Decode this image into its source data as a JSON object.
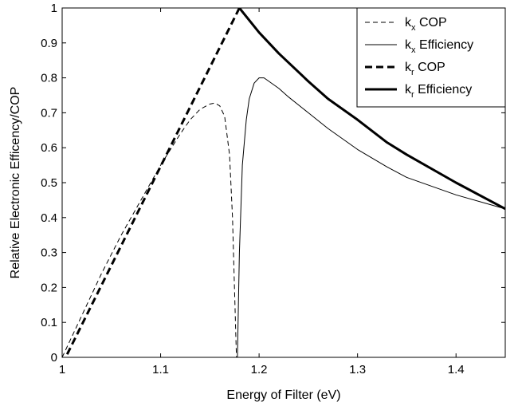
{
  "chart_data": {
    "type": "line",
    "title": "",
    "xlabel": "Energy of Filter (eV)",
    "ylabel": "Relative Electronic Efficency/COP",
    "xlim": [
      1.0,
      1.45
    ],
    "ylim": [
      0,
      1
    ],
    "x_ticks": [
      "1",
      "1.1",
      "1.2",
      "1.3",
      "1.4"
    ],
    "y_ticks": [
      "0",
      "0.1",
      "0.2",
      "0.3",
      "0.4",
      "0.5",
      "0.6",
      "0.7",
      "0.8",
      "0.9",
      "1"
    ],
    "grid": false,
    "legend_position": "top-right",
    "series": [
      {
        "name": "k_x COP",
        "legend_main": "k",
        "legend_sub": "x",
        "legend_rest": " COP",
        "style": "thin-dashed",
        "x": [
          1.0,
          1.02,
          1.04,
          1.06,
          1.08,
          1.1,
          1.12,
          1.13,
          1.14,
          1.15,
          1.155,
          1.16,
          1.165,
          1.17,
          1.173,
          1.175,
          1.177
        ],
        "y": [
          0.0,
          0.12,
          0.24,
          0.35,
          0.45,
          0.55,
          0.64,
          0.68,
          0.71,
          0.725,
          0.728,
          0.72,
          0.69,
          0.58,
          0.4,
          0.2,
          0.0
        ]
      },
      {
        "name": "k_x Efficiency",
        "legend_main": "k",
        "legend_sub": "x",
        "legend_rest": " Efficiency",
        "style": "thin-solid",
        "x": [
          1.178,
          1.18,
          1.183,
          1.187,
          1.19,
          1.195,
          1.2,
          1.205,
          1.21,
          1.22,
          1.23,
          1.25,
          1.27,
          1.3,
          1.33,
          1.35,
          1.4,
          1.45
        ],
        "y": [
          0.0,
          0.3,
          0.55,
          0.68,
          0.74,
          0.785,
          0.8,
          0.8,
          0.79,
          0.77,
          0.745,
          0.7,
          0.655,
          0.595,
          0.545,
          0.515,
          0.465,
          0.425
        ]
      },
      {
        "name": "k_r COP",
        "legend_main": "k",
        "legend_sub": "r",
        "legend_rest": " COP",
        "style": "thick-dashed",
        "x": [
          1.0,
          1.18
        ],
        "y": [
          -0.02,
          1.0
        ]
      },
      {
        "name": "k_r Efficiency",
        "legend_main": "k",
        "legend_sub": "r",
        "legend_rest": " Efficiency",
        "style": "thick-solid",
        "x": [
          1.18,
          1.2,
          1.22,
          1.25,
          1.27,
          1.3,
          1.33,
          1.35,
          1.4,
          1.45
        ],
        "y": [
          1.0,
          0.93,
          0.87,
          0.79,
          0.74,
          0.68,
          0.615,
          0.58,
          0.5,
          0.425
        ]
      }
    ]
  }
}
